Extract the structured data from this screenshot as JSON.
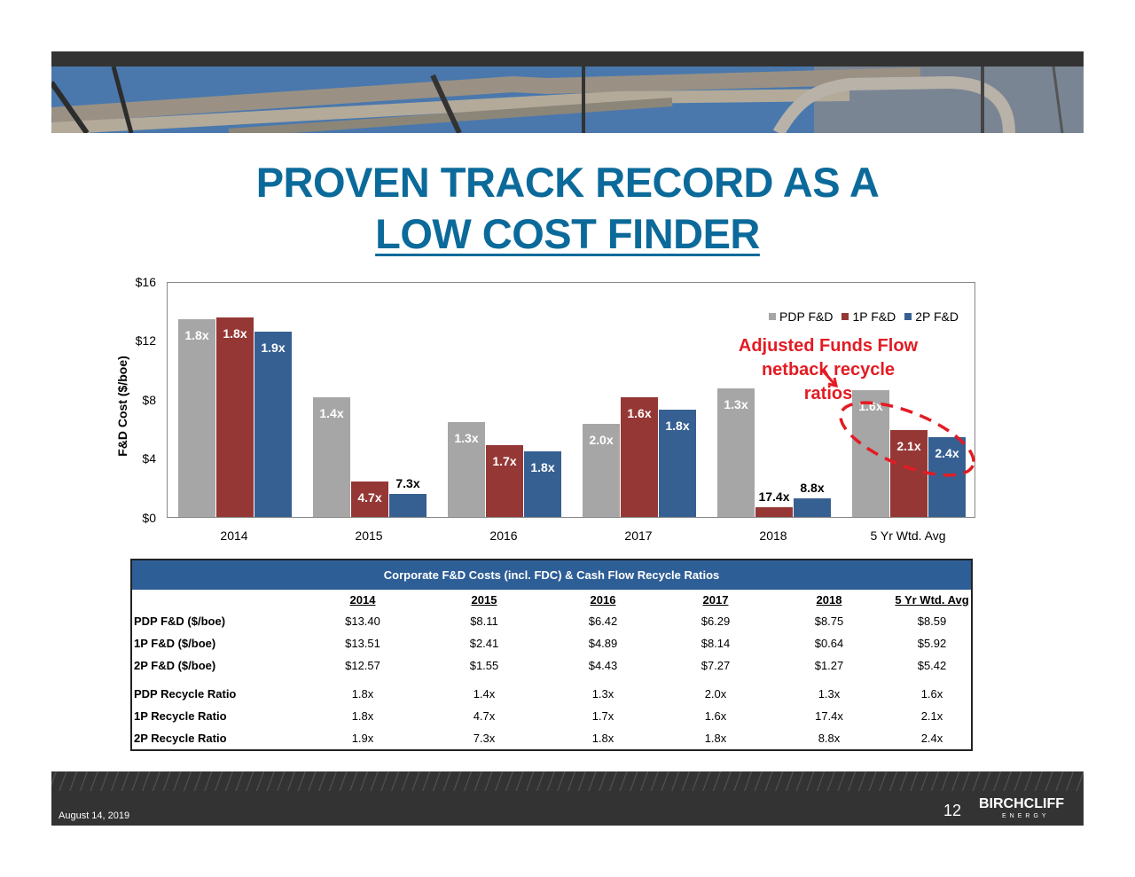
{
  "slide": {
    "title_line1": "PROVEN TRACK RECORD AS A",
    "title_line2": "LOW COST FINDER"
  },
  "chart_data": {
    "type": "bar",
    "title": "",
    "xlabel": "",
    "ylabel": "F&D Cost ($/boe)",
    "ylim": [
      0,
      16
    ],
    "yticks": [
      "$0",
      "$4",
      "$8",
      "$12",
      "$16"
    ],
    "categories": [
      "2014",
      "2015",
      "2016",
      "2017",
      "2018",
      "5 Yr Wtd. Avg"
    ],
    "series": [
      {
        "name": "PDP F&D",
        "color": "#A6A6A6",
        "values": [
          13.4,
          8.11,
          6.42,
          6.29,
          8.75,
          8.59
        ],
        "labels": [
          "1.8x",
          "1.4x",
          "1.3x",
          "2.0x",
          "1.3x",
          "1.6x"
        ]
      },
      {
        "name": "1P F&D",
        "color": "#953735",
        "values": [
          13.51,
          2.41,
          4.89,
          8.14,
          0.64,
          5.92
        ],
        "labels": [
          "1.8x",
          "4.7x",
          "1.7x",
          "1.6x",
          "17.4x",
          "2.1x"
        ]
      },
      {
        "name": "2P F&D",
        "color": "#376092",
        "values": [
          12.57,
          1.55,
          4.43,
          7.27,
          1.27,
          5.42
        ],
        "labels": [
          "1.9x",
          "7.3x",
          "1.8x",
          "1.8x",
          "8.8x",
          "2.4x"
        ]
      }
    ],
    "legend_position": "top-right",
    "grid": false,
    "annotation": "Adjusted Funds Flow netback recycle ratios",
    "annotation_color": "#E31B23"
  },
  "annotation": {
    "line1": "Adjusted Funds Flow",
    "line2": "netback recycle",
    "line3": "ratios"
  },
  "table": {
    "title": "Corporate F&D Costs (incl. FDC) & Cash Flow Recycle Ratios",
    "columns": [
      "2014",
      "2015",
      "2016",
      "2017",
      "2018",
      "5 Yr Wtd. Avg"
    ],
    "rows": [
      {
        "label": "PDP F&D ($/boe)",
        "values": [
          "$13.40",
          "$8.11",
          "$6.42",
          "$6.29",
          "$8.75",
          "$8.59"
        ]
      },
      {
        "label": "1P F&D ($/boe)",
        "values": [
          "$13.51",
          "$2.41",
          "$4.89",
          "$8.14",
          "$0.64",
          "$5.92"
        ]
      },
      {
        "label": "2P F&D ($/boe)",
        "values": [
          "$12.57",
          "$1.55",
          "$4.43",
          "$7.27",
          "$1.27",
          "$5.42"
        ]
      },
      {
        "label": "PDP Recycle Ratio",
        "values": [
          "1.8x",
          "1.4x",
          "1.3x",
          "2.0x",
          "1.3x",
          "1.6x"
        ]
      },
      {
        "label": "1P Recycle Ratio",
        "values": [
          "1.8x",
          "4.7x",
          "1.7x",
          "1.6x",
          "17.4x",
          "2.1x"
        ]
      },
      {
        "label": "2P Recycle Ratio",
        "values": [
          "1.9x",
          "7.3x",
          "1.8x",
          "1.8x",
          "8.8x",
          "2.4x"
        ]
      }
    ]
  },
  "footer": {
    "date": "August 14, 2019",
    "page_number": "12",
    "logo_main": "BIRCHCLIFF",
    "logo_sub": "ENERGY"
  }
}
